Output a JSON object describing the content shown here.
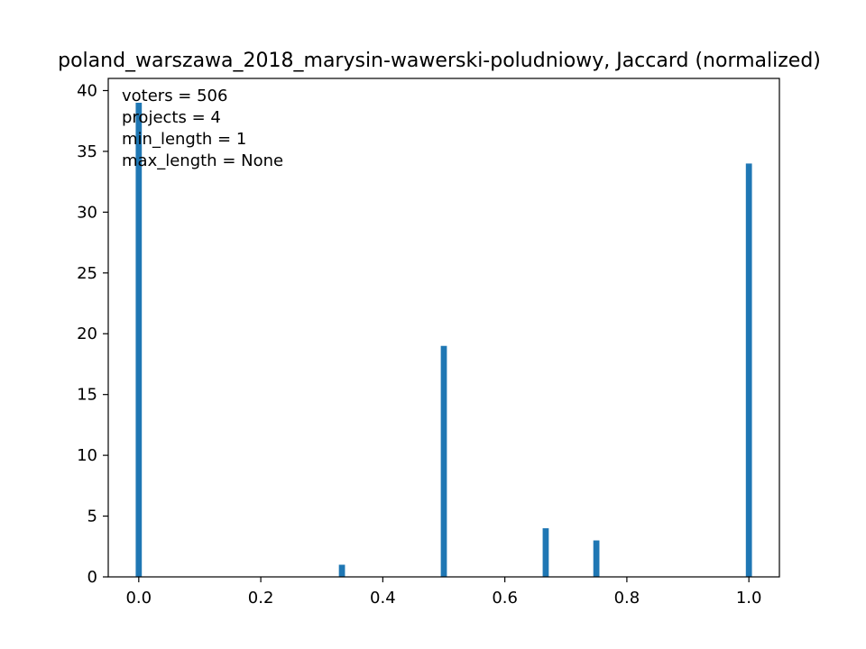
{
  "chart_data": {
    "type": "bar",
    "title": "poland_warszawa_2018_marysin-wawerski-poludniowy, Jaccard (normalized)",
    "xlabel": "",
    "ylabel": "",
    "xlim": [
      -0.05,
      1.05
    ],
    "ylim": [
      0,
      41
    ],
    "bar_color": "#1f77b4",
    "grid": false,
    "x_ticks": [
      0.0,
      0.2,
      0.4,
      0.6,
      0.8,
      1.0
    ],
    "x_tick_labels": [
      "0.0",
      "0.2",
      "0.4",
      "0.6",
      "0.8",
      "1.0"
    ],
    "y_ticks": [
      0,
      5,
      10,
      15,
      20,
      25,
      30,
      35,
      40
    ],
    "y_tick_labels": [
      "0",
      "5",
      "10",
      "15",
      "20",
      "25",
      "30",
      "35",
      "40"
    ],
    "series": [
      {
        "x": [
          0.0,
          0.333,
          0.5,
          0.667,
          0.75,
          1.0
        ],
        "values": [
          39,
          1,
          19,
          4,
          3,
          34
        ]
      }
    ],
    "bin_width": 0.01,
    "annotations": [
      "voters = 506",
      "projects = 4",
      "min_length = 1",
      "max_length = None"
    ]
  }
}
